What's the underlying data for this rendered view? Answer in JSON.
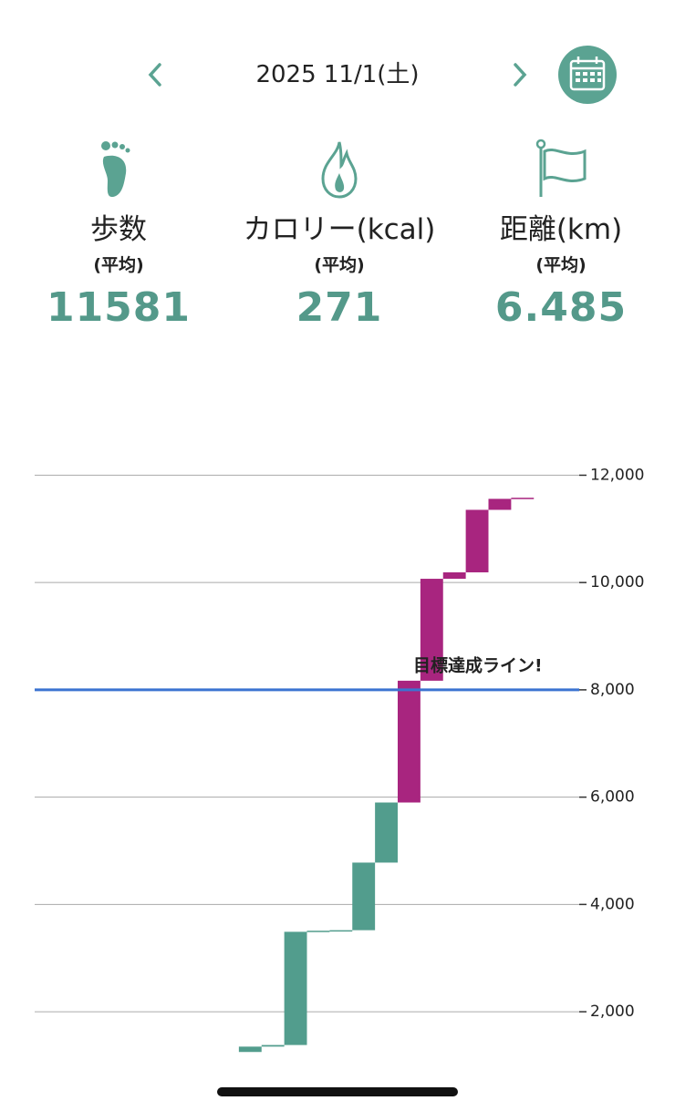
{
  "header": {
    "date": "2025 11/1(土)"
  },
  "stats": [
    {
      "label": "歩数",
      "sub": "(平均)",
      "value": 11581
    },
    {
      "label": "カロリー(kcal)",
      "sub": "(平均)",
      "value": 271
    },
    {
      "label": "距離(km)",
      "sub": "(平均)",
      "value": 6.485
    }
  ],
  "chart_data": {
    "type": "waterfall",
    "start": 1250,
    "values": [
      null,
      null,
      null,
      null,
      null,
      null,
      null,
      null,
      null,
      100,
      30,
      2110,
      20,
      10,
      1260,
      1120,
      2270,
      1900,
      120,
      1165,
      205,
      21,
      null,
      null
    ],
    "color": "#529d8d",
    "goal_color": "#a8257f",
    "goal": {
      "value": 8000,
      "label": "目標達成ライン!",
      "color": "#3b73d1"
    },
    "ylim": [
      150,
      12500
    ],
    "yticks": [
      {
        "value": 2000,
        "label": "2,000"
      },
      {
        "value": 4000,
        "label": "4,000"
      },
      {
        "value": 6000,
        "label": "6,000"
      },
      {
        "value": 8000,
        "label": "8,000"
      },
      {
        "value": 10000,
        "label": "10,000"
      },
      {
        "value": 12000,
        "label": "12,000"
      }
    ],
    "grid": true
  }
}
